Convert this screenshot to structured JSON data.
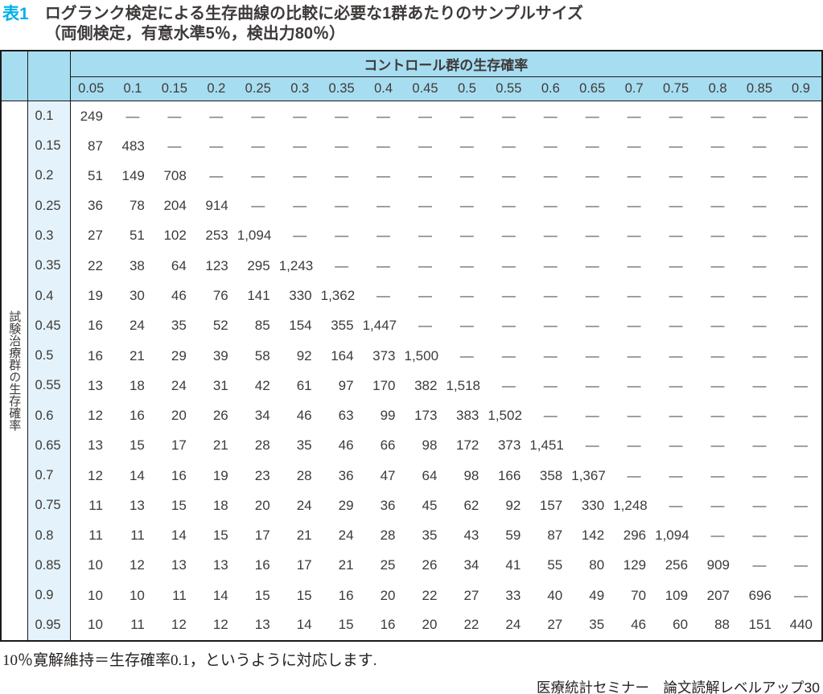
{
  "title": {
    "tag": "表1",
    "line1": "ログランク検定による生存曲線の比較に必要な1群あたりのサンプルサイズ",
    "line2": "（両側検定，有意水準5％，検出力80％）"
  },
  "table": {
    "col_group_header": "コントロール群の生存確率",
    "row_group_header": "試験治療群の生存確率",
    "col_labels": [
      "0.05",
      "0.1",
      "0.15",
      "0.2",
      "0.25",
      "0.3",
      "0.35",
      "0.4",
      "0.45",
      "0.5",
      "0.55",
      "0.6",
      "0.65",
      "0.7",
      "0.75",
      "0.8",
      "0.85",
      "0.9"
    ],
    "rows": [
      {
        "label": "0.1",
        "values": [
          "249",
          "—",
          "—",
          "—",
          "—",
          "—",
          "—",
          "—",
          "—",
          "—",
          "—",
          "—",
          "—",
          "—",
          "—",
          "—",
          "—",
          "—"
        ]
      },
      {
        "label": "0.15",
        "values": [
          "87",
          "483",
          "—",
          "—",
          "—",
          "—",
          "—",
          "—",
          "—",
          "—",
          "—",
          "—",
          "—",
          "—",
          "—",
          "—",
          "—",
          "—"
        ]
      },
      {
        "label": "0.2",
        "values": [
          "51",
          "149",
          "708",
          "—",
          "—",
          "—",
          "—",
          "—",
          "—",
          "—",
          "—",
          "—",
          "—",
          "—",
          "—",
          "—",
          "—",
          "—"
        ]
      },
      {
        "label": "0.25",
        "values": [
          "36",
          "78",
          "204",
          "914",
          "—",
          "—",
          "—",
          "—",
          "—",
          "—",
          "—",
          "—",
          "—",
          "—",
          "—",
          "—",
          "—",
          "—"
        ]
      },
      {
        "label": "0.3",
        "values": [
          "27",
          "51",
          "102",
          "253",
          "1,094",
          "—",
          "—",
          "—",
          "—",
          "—",
          "—",
          "—",
          "—",
          "—",
          "—",
          "—",
          "—",
          "—"
        ]
      },
      {
        "label": "0.35",
        "values": [
          "22",
          "38",
          "64",
          "123",
          "295",
          "1,243",
          "—",
          "—",
          "—",
          "—",
          "—",
          "—",
          "—",
          "—",
          "—",
          "—",
          "—",
          "—"
        ]
      },
      {
        "label": "0.4",
        "values": [
          "19",
          "30",
          "46",
          "76",
          "141",
          "330",
          "1,362",
          "—",
          "—",
          "—",
          "—",
          "—",
          "—",
          "—",
          "—",
          "—",
          "—",
          "—"
        ]
      },
      {
        "label": "0.45",
        "values": [
          "16",
          "24",
          "35",
          "52",
          "85",
          "154",
          "355",
          "1,447",
          "—",
          "—",
          "—",
          "—",
          "—",
          "—",
          "—",
          "—",
          "—",
          "—"
        ]
      },
      {
        "label": "0.5",
        "values": [
          "16",
          "21",
          "29",
          "39",
          "58",
          "92",
          "164",
          "373",
          "1,500",
          "—",
          "—",
          "—",
          "—",
          "—",
          "—",
          "—",
          "—",
          "—"
        ]
      },
      {
        "label": "0.55",
        "values": [
          "13",
          "18",
          "24",
          "31",
          "42",
          "61",
          "97",
          "170",
          "382",
          "1,518",
          "—",
          "—",
          "—",
          "—",
          "—",
          "—",
          "—",
          "—"
        ]
      },
      {
        "label": "0.6",
        "values": [
          "12",
          "16",
          "20",
          "26",
          "34",
          "46",
          "63",
          "99",
          "173",
          "383",
          "1,502",
          "—",
          "—",
          "—",
          "—",
          "—",
          "—",
          "—"
        ]
      },
      {
        "label": "0.65",
        "values": [
          "13",
          "15",
          "17",
          "21",
          "28",
          "35",
          "46",
          "66",
          "98",
          "172",
          "373",
          "1,451",
          "—",
          "—",
          "—",
          "—",
          "—",
          "—"
        ]
      },
      {
        "label": "0.7",
        "values": [
          "12",
          "14",
          "16",
          "19",
          "23",
          "28",
          "36",
          "47",
          "64",
          "98",
          "166",
          "358",
          "1,367",
          "—",
          "—",
          "—",
          "—",
          "—"
        ]
      },
      {
        "label": "0.75",
        "values": [
          "11",
          "13",
          "15",
          "18",
          "20",
          "24",
          "29",
          "36",
          "45",
          "62",
          "92",
          "157",
          "330",
          "1,248",
          "—",
          "—",
          "—",
          "—"
        ]
      },
      {
        "label": "0.8",
        "values": [
          "11",
          "11",
          "14",
          "15",
          "17",
          "21",
          "24",
          "28",
          "35",
          "43",
          "59",
          "87",
          "142",
          "296",
          "1,094",
          "—",
          "—",
          "—"
        ]
      },
      {
        "label": "0.85",
        "values": [
          "10",
          "12",
          "13",
          "13",
          "16",
          "17",
          "21",
          "25",
          "26",
          "34",
          "41",
          "55",
          "80",
          "129",
          "256",
          "909",
          "—",
          "—"
        ]
      },
      {
        "label": "0.9",
        "values": [
          "10",
          "10",
          "11",
          "14",
          "15",
          "15",
          "16",
          "20",
          "22",
          "27",
          "33",
          "40",
          "49",
          "70",
          "109",
          "207",
          "696",
          "—"
        ]
      },
      {
        "label": "0.95",
        "values": [
          "10",
          "11",
          "12",
          "12",
          "13",
          "14",
          "15",
          "16",
          "20",
          "22",
          "24",
          "27",
          "35",
          "46",
          "60",
          "88",
          "151",
          "440"
        ]
      }
    ]
  },
  "footnote": "10％寛解維持＝生存確率0.1，というように対応します.",
  "credit": "医療統計セミナー　論文読解レベルアップ30",
  "colors": {
    "header_blue": "#a7ddf0",
    "rowlabel_blue": "#e4f3fb",
    "title_accent": "#00b0ec",
    "ink": "#3e3a39",
    "dash": "#595757"
  }
}
